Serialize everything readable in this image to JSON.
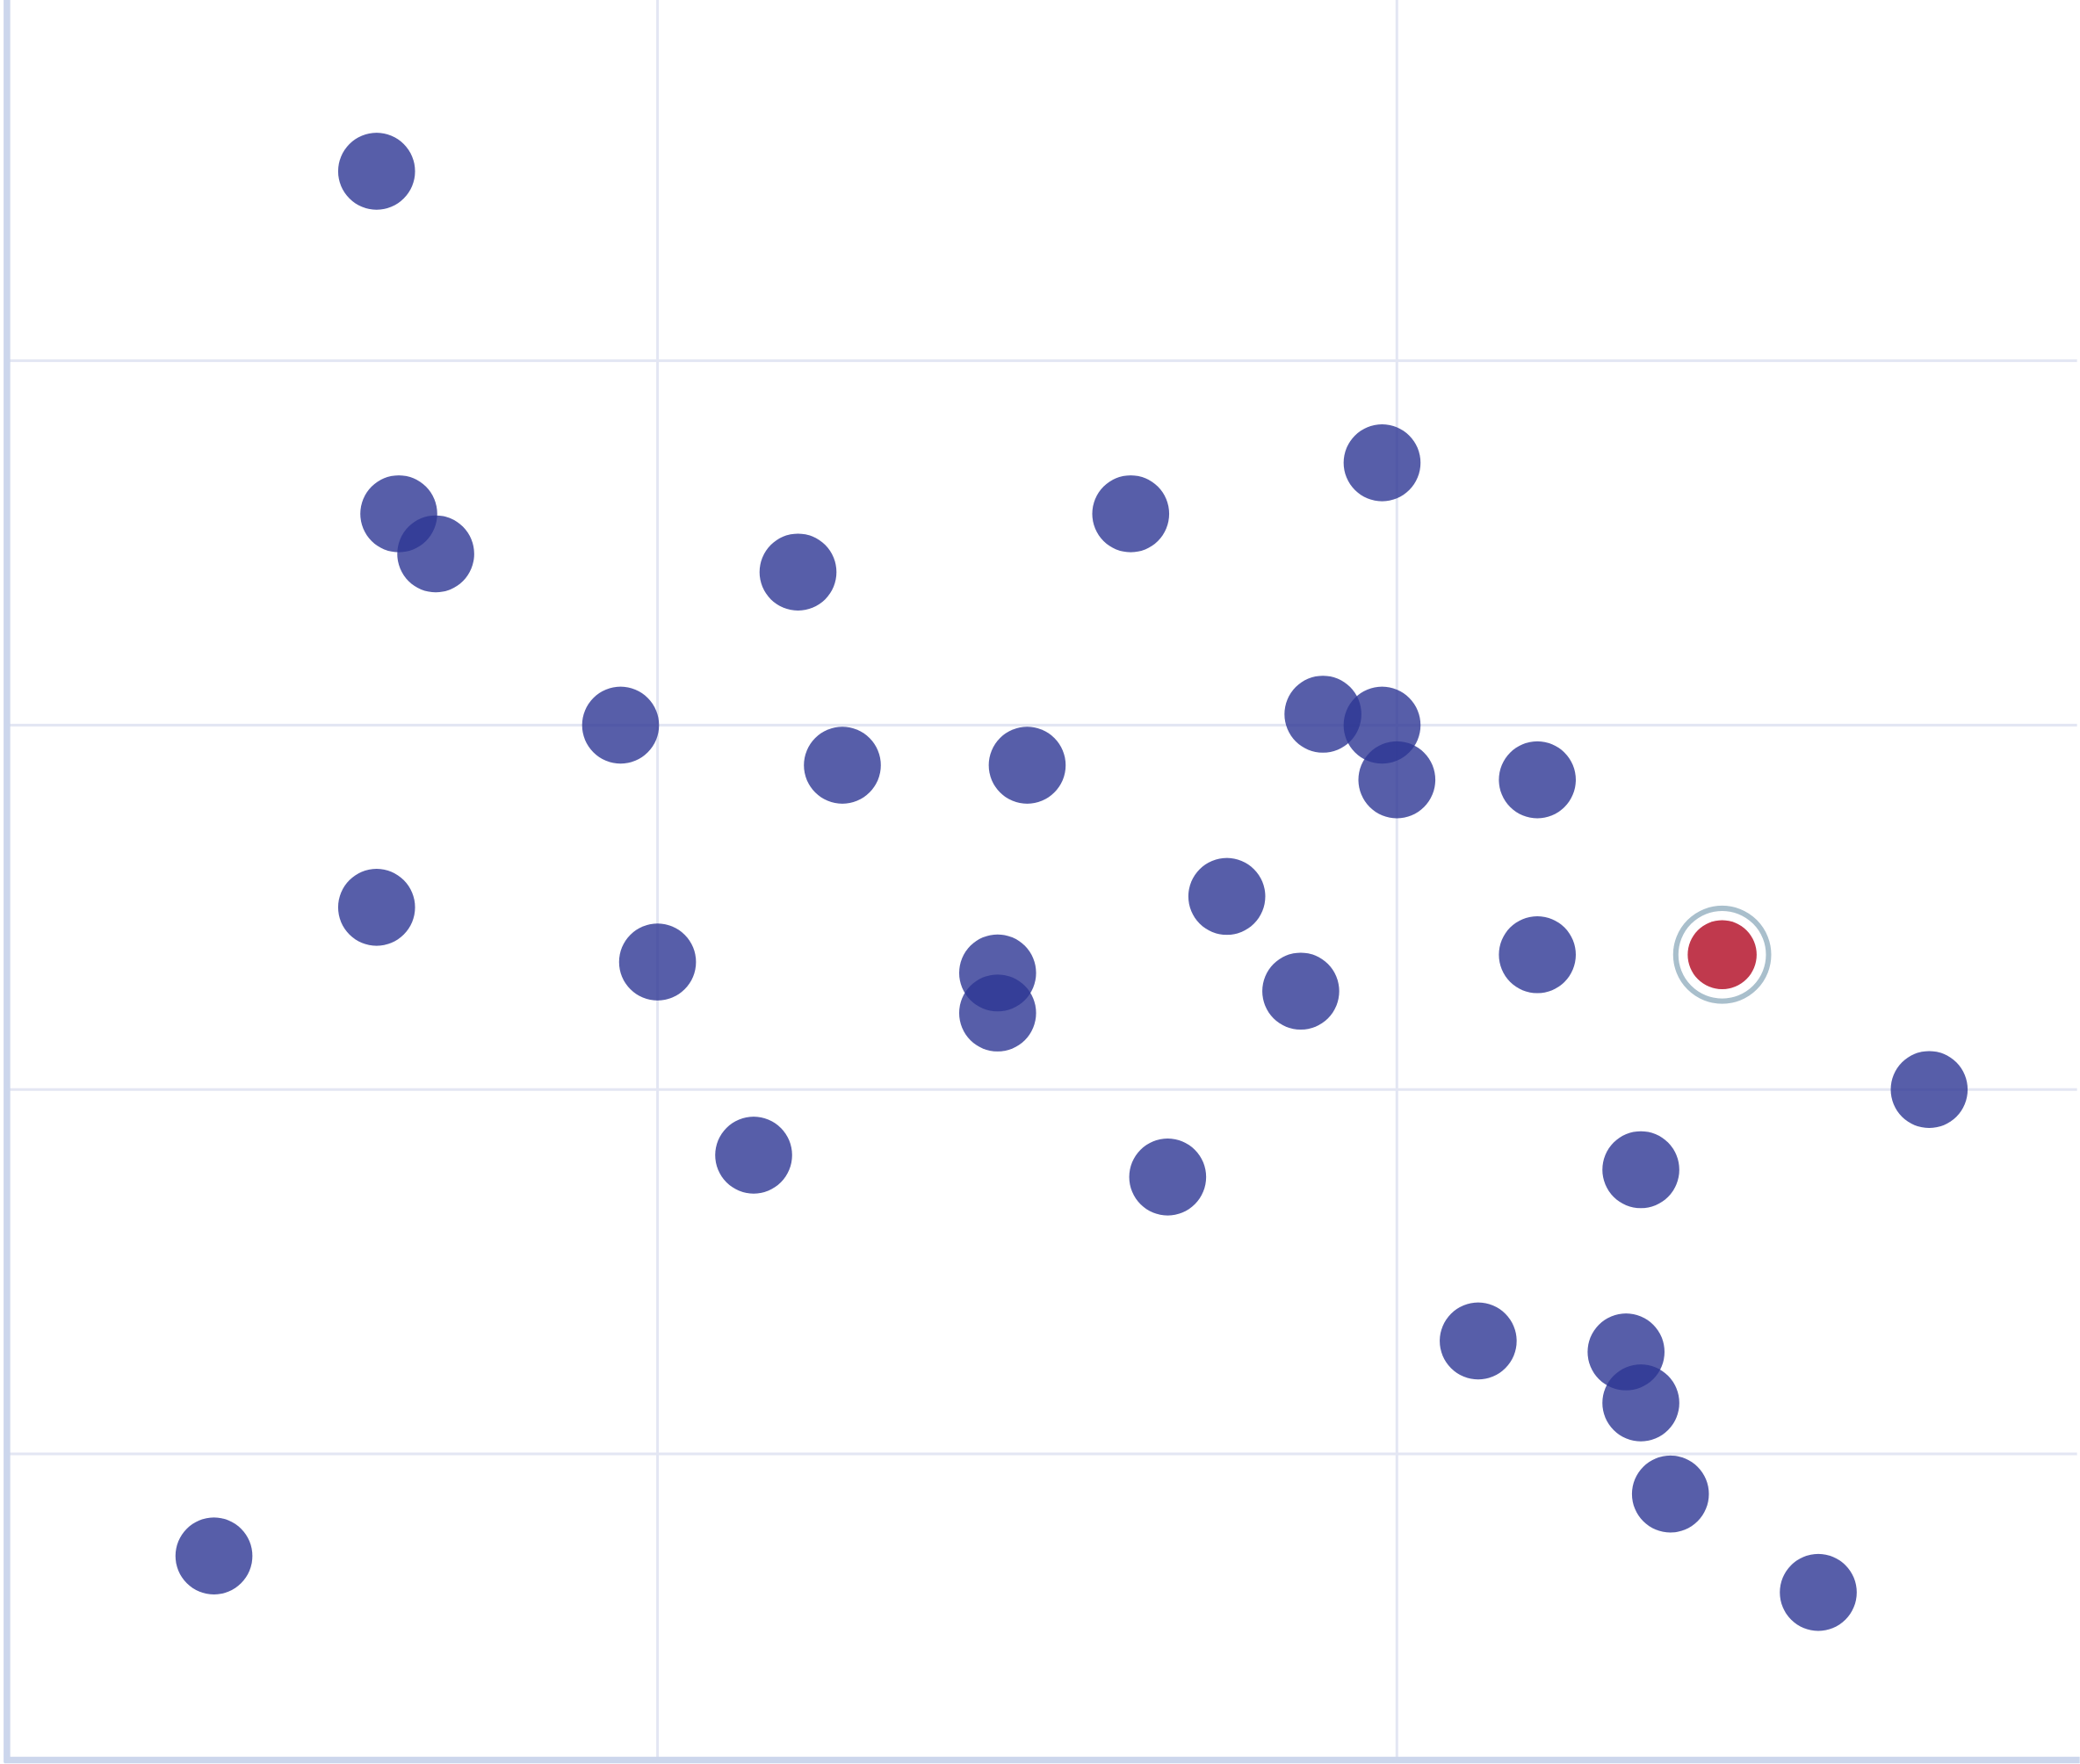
{
  "chart_data": {
    "type": "scatter",
    "title": "",
    "xlabel": "",
    "ylabel": "",
    "xlim": [
      0.12,
      2.92
    ],
    "ylim": [
      0.16,
      4.99
    ],
    "x_gridlines": [
      1,
      2
    ],
    "y_gridlines": [
      1,
      2,
      3,
      4
    ],
    "grid": true,
    "legend": "none",
    "colors": {
      "point": "#2d3694",
      "highlight": "#c0394d",
      "highlight_ring": "#a9bfcc",
      "axis": "#ccd6ec",
      "grid": "#e3e6f3"
    },
    "points": [
      {
        "x": 0.62,
        "y": 4.52
      },
      {
        "x": 0.65,
        "y": 3.58
      },
      {
        "x": 0.7,
        "y": 3.47
      },
      {
        "x": 1.19,
        "y": 3.42
      },
      {
        "x": 1.64,
        "y": 3.58
      },
      {
        "x": 1.98,
        "y": 3.72
      },
      {
        "x": 0.95,
        "y": 3.0
      },
      {
        "x": 1.25,
        "y": 2.89
      },
      {
        "x": 1.5,
        "y": 2.89
      },
      {
        "x": 1.9,
        "y": 3.03
      },
      {
        "x": 1.98,
        "y": 3.0
      },
      {
        "x": 2.0,
        "y": 2.85
      },
      {
        "x": 2.19,
        "y": 2.85
      },
      {
        "x": 0.62,
        "y": 2.5
      },
      {
        "x": 1.0,
        "y": 2.35
      },
      {
        "x": 1.46,
        "y": 2.32
      },
      {
        "x": 1.46,
        "y": 2.21
      },
      {
        "x": 1.77,
        "y": 2.53
      },
      {
        "x": 1.87,
        "y": 2.27
      },
      {
        "x": 2.19,
        "y": 2.37
      },
      {
        "x": 2.72,
        "y": 2.0
      },
      {
        "x": 1.13,
        "y": 1.82
      },
      {
        "x": 1.69,
        "y": 1.76
      },
      {
        "x": 2.33,
        "y": 1.78
      },
      {
        "x": 2.11,
        "y": 1.31
      },
      {
        "x": 2.31,
        "y": 1.28
      },
      {
        "x": 2.33,
        "y": 1.14
      },
      {
        "x": 2.37,
        "y": 0.89
      },
      {
        "x": 0.4,
        "y": 0.72
      },
      {
        "x": 2.57,
        "y": 0.62
      }
    ],
    "highlighted_point": {
      "x": 2.44,
      "y": 2.37
    }
  }
}
